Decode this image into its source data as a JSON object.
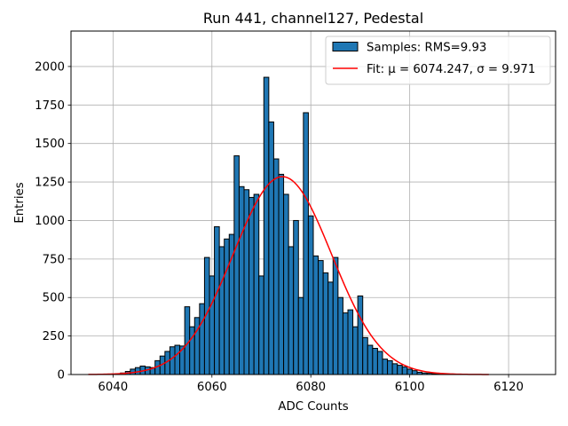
{
  "chart_data": {
    "type": "bar",
    "title": "Run 441, channel127, Pedestal",
    "xlabel": "ADC Counts",
    "ylabel": "Entries",
    "xlim": [
      6031.5,
      6129.5
    ],
    "ylim": [
      0,
      2230
    ],
    "xticks": [
      6040,
      6060,
      6080,
      6100,
      6120
    ],
    "yticks": [
      0,
      250,
      500,
      750,
      1000,
      1250,
      1500,
      1750,
      2000
    ],
    "grid": true,
    "legend_position": "top-right",
    "bin_width": 1,
    "series": [
      {
        "name": "Samples: RMS=9.93",
        "kind": "histogram",
        "color": "#1f77b4",
        "edgecolor": "#000000",
        "x": [
          6041,
          6042,
          6043,
          6044,
          6045,
          6046,
          6047,
          6048,
          6049,
          6050,
          6051,
          6052,
          6053,
          6054,
          6055,
          6056,
          6057,
          6058,
          6059,
          6060,
          6061,
          6062,
          6063,
          6064,
          6065,
          6066,
          6067,
          6068,
          6069,
          6070,
          6071,
          6072,
          6073,
          6074,
          6075,
          6076,
          6077,
          6078,
          6079,
          6080,
          6081,
          6082,
          6083,
          6084,
          6085,
          6086,
          6087,
          6088,
          6089,
          6090,
          6091,
          6092,
          6093,
          6094,
          6095,
          6096,
          6097,
          6098,
          6099,
          6100,
          6101,
          6102,
          6103,
          6104,
          6105,
          6106,
          6107,
          6108
        ],
        "values": [
          5,
          10,
          20,
          35,
          45,
          55,
          50,
          45,
          90,
          120,
          150,
          180,
          190,
          185,
          440,
          310,
          370,
          460,
          760,
          640,
          960,
          830,
          880,
          910,
          1420,
          1220,
          1200,
          1150,
          1170,
          640,
          1930,
          1640,
          1400,
          1300,
          1170,
          830,
          1000,
          500,
          1700,
          1030,
          770,
          740,
          660,
          600,
          760,
          500,
          400,
          420,
          310,
          510,
          240,
          190,
          170,
          150,
          100,
          90,
          70,
          60,
          50,
          35,
          25,
          15,
          10,
          8,
          5,
          3,
          2,
          1
        ]
      },
      {
        "name": "Fit: μ = 6074.247, σ = 9.971",
        "kind": "gaussian-fit",
        "color": "#ff0000",
        "mu": 6074.247,
        "sigma": 9.971,
        "amplitude": 1285,
        "x_range": [
          6035,
          6116
        ]
      }
    ]
  }
}
